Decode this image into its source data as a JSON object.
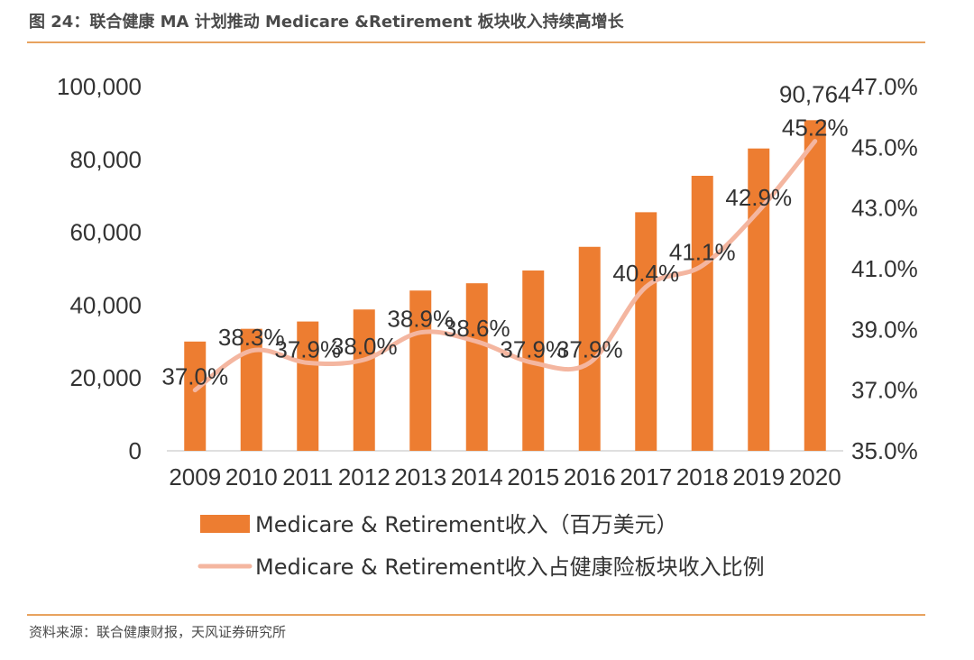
{
  "figure_title": "图 24：联合健康 MA 计划推动 Medicare &Retirement 板块收入持续高增长",
  "source_note": "资料来源：联合健康财报，天风证券研究所",
  "colors": {
    "bar": "#ed7d31",
    "line": "#f4b6a0",
    "rule": "#e8a35f",
    "text": "#333333"
  },
  "chart_data": {
    "type": "bar",
    "title": "",
    "xlabel": "",
    "ylabel": "",
    "categories": [
      "2009",
      "2010",
      "2011",
      "2012",
      "2013",
      "2014",
      "2015",
      "2016",
      "2017",
      "2018",
      "2019",
      "2020"
    ],
    "series": [
      {
        "name": "Medicare & Retirement收入（百万美元）",
        "type": "bar",
        "axis": "left",
        "values": [
          30000,
          33500,
          35500,
          38800,
          44000,
          46000,
          49500,
          56000,
          65500,
          75500,
          83000,
          90764
        ],
        "data_labels": [
          "",
          "",
          "",
          "",
          "",
          "",
          "",
          "",
          "",
          "",
          "",
          "90,764"
        ]
      },
      {
        "name": "Medicare & Retirement收入占健康险板块收入比例",
        "type": "line",
        "axis": "right",
        "values": [
          37.0,
          38.3,
          37.9,
          38.0,
          38.9,
          38.6,
          37.9,
          37.9,
          40.4,
          41.1,
          42.9,
          45.2
        ],
        "data_labels": [
          "37.0%",
          "38.3%",
          "37.9%",
          "38.0%",
          "38.9%",
          "38.6%",
          "37.9%",
          "37.9%",
          "40.4%",
          "41.1%",
          "42.9%",
          "45.2%"
        ]
      }
    ],
    "y_left": {
      "min": 0,
      "max": 100000,
      "ticks": [
        "0",
        "20,000",
        "40,000",
        "60,000",
        "80,000",
        "100,000"
      ]
    },
    "y_right": {
      "min": 35.0,
      "max": 47.0,
      "ticks": [
        "35.0%",
        "37.0%",
        "39.0%",
        "41.0%",
        "43.0%",
        "45.0%",
        "47.0%"
      ]
    },
    "grid": false,
    "legend_position": "bottom"
  }
}
